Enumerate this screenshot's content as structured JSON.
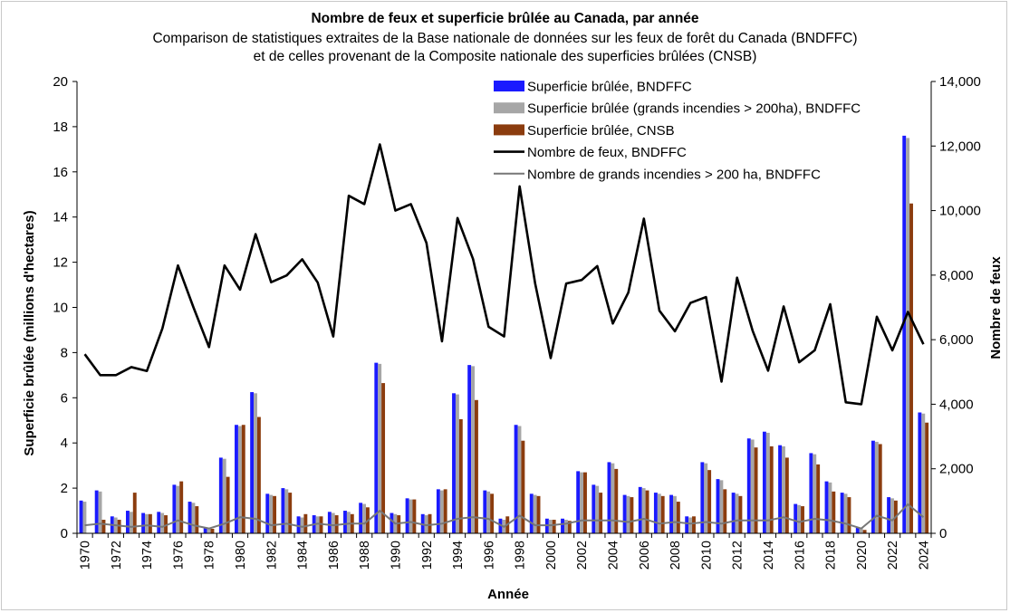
{
  "chart_data": {
    "type": "bar",
    "title": "Nombre de feux et superficie brûlée au Canada, par année",
    "subtitle_line1": "Comparison de statistiques extraites de la Base nationale de données sur les feux de forêt du Canada (BNDFFC)",
    "subtitle_line2": "et de celles provenant de la Composite nationale des superficies brûlées (CNSB)",
    "xlabel": "Année",
    "ylabel_left": "Superficie brûlée (millions d'hectares)",
    "ylabel_right": "Nombre de feux",
    "ylim_left": [
      0,
      20
    ],
    "ylim_right": [
      0,
      14000
    ],
    "left_ticks": [
      "0",
      "2",
      "4",
      "6",
      "8",
      "10",
      "12",
      "14",
      "16",
      "18",
      "20"
    ],
    "right_ticks": [
      "0",
      "2,000",
      "4,000",
      "6,000",
      "8,000",
      "10,000",
      "12,000",
      "14,000"
    ],
    "x_tick_labels": [
      "1970",
      "1972",
      "1974",
      "1976",
      "1978",
      "1980",
      "1982",
      "1984",
      "1986",
      "1988",
      "1990",
      "1992",
      "1994",
      "1996",
      "1998",
      "2000",
      "2002",
      "2004",
      "2006",
      "2008",
      "2010",
      "2012",
      "2014",
      "2016",
      "2018",
      "2020",
      "2022",
      "2024"
    ],
    "legend_position": "top-right",
    "grid": false,
    "years": [
      1970,
      1971,
      1972,
      1973,
      1974,
      1975,
      1976,
      1977,
      1978,
      1979,
      1980,
      1981,
      1982,
      1983,
      1984,
      1985,
      1986,
      1987,
      1988,
      1989,
      1990,
      1991,
      1992,
      1993,
      1994,
      1995,
      1996,
      1997,
      1998,
      1999,
      2000,
      2001,
      2002,
      2003,
      2004,
      2005,
      2006,
      2007,
      2008,
      2009,
      2010,
      2011,
      2012,
      2013,
      2014,
      2015,
      2016,
      2017,
      2018,
      2019,
      2020,
      2021,
      2022,
      2023,
      2024
    ],
    "series": [
      {
        "name": "Superficie brûlée, BNDFFC",
        "kind": "bar",
        "axis": "left",
        "color": "#1a1aff",
        "values": [
          1.45,
          1.9,
          0.75,
          1.0,
          0.9,
          0.95,
          2.15,
          1.4,
          0.25,
          3.35,
          4.8,
          6.25,
          1.75,
          2.0,
          0.75,
          0.8,
          0.95,
          1.0,
          1.35,
          7.55,
          0.9,
          1.55,
          0.85,
          1.95,
          6.2,
          7.45,
          1.9,
          0.65,
          4.8,
          1.75,
          0.65,
          0.65,
          2.75,
          2.15,
          3.15,
          1.7,
          2.05,
          1.8,
          1.7,
          0.75,
          3.15,
          2.4,
          1.8,
          4.2,
          4.5,
          3.9,
          1.3,
          3.55,
          2.3,
          1.8,
          0.25,
          4.1,
          1.6,
          17.6,
          5.35
        ]
      },
      {
        "name": "Superficie brûlée (grands incendies > 200ha), BNDFFC",
        "kind": "bar",
        "axis": "left",
        "color": "#a6a6a6",
        "values": [
          1.4,
          1.85,
          0.7,
          0.95,
          0.85,
          0.9,
          2.1,
          1.35,
          0.22,
          3.3,
          4.75,
          6.2,
          1.7,
          1.95,
          0.7,
          0.75,
          0.9,
          0.95,
          1.3,
          7.5,
          0.85,
          1.5,
          0.8,
          1.9,
          6.15,
          7.4,
          1.85,
          0.6,
          4.75,
          1.7,
          0.6,
          0.6,
          2.7,
          2.1,
          3.1,
          1.65,
          2.0,
          1.75,
          1.65,
          0.7,
          3.1,
          2.35,
          1.75,
          4.15,
          4.45,
          3.85,
          1.25,
          3.5,
          2.25,
          1.75,
          0.22,
          4.05,
          1.55,
          17.5,
          5.3
        ]
      },
      {
        "name": "Superficie brûlée, CNSB",
        "kind": "bar",
        "axis": "left",
        "color": "#8b3c0e",
        "values": [
          0,
          0.6,
          0.6,
          1.8,
          0.85,
          0.8,
          2.3,
          1.2,
          0.2,
          2.5,
          4.8,
          5.15,
          1.65,
          1.8,
          0.85,
          0.75,
          0.8,
          0.85,
          1.15,
          6.65,
          0.8,
          1.5,
          0.85,
          1.95,
          5.05,
          5.9,
          1.75,
          0.75,
          4.1,
          1.65,
          0.6,
          0.55,
          2.7,
          1.8,
          2.85,
          1.6,
          1.9,
          1.65,
          1.4,
          0.75,
          2.8,
          1.95,
          1.65,
          3.8,
          3.85,
          3.35,
          1.2,
          3.05,
          1.85,
          1.6,
          0.15,
          3.95,
          1.45,
          14.6,
          4.9
        ]
      },
      {
        "name": "Nombre de feux, BNDFFC",
        "kind": "line",
        "axis": "right",
        "color": "#000000",
        "values": [
          5550,
          4900,
          4900,
          5150,
          5030,
          6350,
          8300,
          7000,
          5770,
          8300,
          7550,
          9270,
          7780,
          7990,
          8490,
          7770,
          6100,
          10460,
          10200,
          12050,
          10000,
          10200,
          9000,
          5950,
          9770,
          8500,
          6400,
          6100,
          10750,
          7740,
          5430,
          7740,
          7850,
          8280,
          6500,
          7460,
          9750,
          6900,
          6260,
          7140,
          7320,
          4700,
          7920,
          6280,
          5040,
          7030,
          5300,
          5670,
          7100,
          4060,
          4000,
          6710,
          5670,
          6860,
          5860
        ]
      },
      {
        "name": "Nombre de grands incendies > 200 ha, BNDFFC",
        "kind": "line",
        "axis": "right",
        "color": "#777777",
        "values": [
          250,
          300,
          250,
          200,
          250,
          200,
          400,
          250,
          150,
          300,
          500,
          450,
          250,
          300,
          200,
          300,
          250,
          300,
          300,
          700,
          300,
          350,
          250,
          300,
          450,
          500,
          450,
          200,
          550,
          250,
          250,
          300,
          400,
          400,
          400,
          350,
          450,
          300,
          350,
          300,
          350,
          300,
          400,
          400,
          400,
          500,
          350,
          450,
          400,
          300,
          150,
          550,
          400,
          900,
          500
        ]
      }
    ]
  }
}
